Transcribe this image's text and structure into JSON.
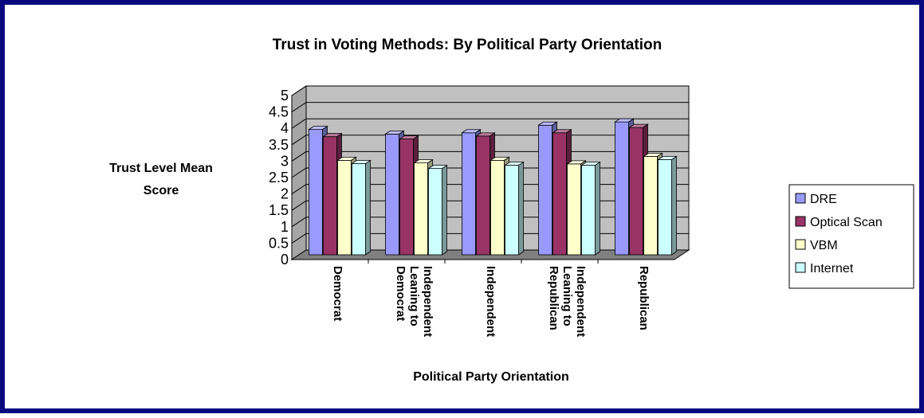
{
  "chart_data": {
    "type": "bar",
    "title": "Trust in Voting Methods: By Political Party Orientation",
    "xlabel": "Political Party Orientation",
    "ylabel_lines": [
      "Trust Level Mean",
      "Score"
    ],
    "ylim": [
      0,
      5
    ],
    "yticks": [
      "0",
      "0.5",
      "1",
      "1.5",
      "2",
      "2.5",
      "3",
      "3.5",
      "4",
      "4.5",
      "5"
    ],
    "grid": true,
    "legend_position": "right",
    "categories": [
      [
        "Democrat"
      ],
      [
        "Independent",
        "Leaning to",
        "Democrat"
      ],
      [
        "Independent"
      ],
      [
        "Independent",
        "Leaning to",
        "Republican"
      ],
      [
        "Republican"
      ]
    ],
    "series": [
      {
        "name": "DRE",
        "color": "#9999ff",
        "values": [
          3.82,
          3.68,
          3.72,
          3.95,
          4.05
        ]
      },
      {
        "name": "Optical Scan",
        "color": "#993366",
        "values": [
          3.6,
          3.53,
          3.62,
          3.72,
          3.88
        ]
      },
      {
        "name": "VBM",
        "color": "#ffffcc",
        "values": [
          2.88,
          2.8,
          2.88,
          2.77,
          3.0
        ]
      },
      {
        "name": "Internet",
        "color": "#ccffff",
        "values": [
          2.78,
          2.63,
          2.73,
          2.73,
          2.9
        ]
      }
    ],
    "colors": {
      "wall": "#c0c0c0",
      "floor": "#808080",
      "frame": "#0a0a80"
    }
  }
}
